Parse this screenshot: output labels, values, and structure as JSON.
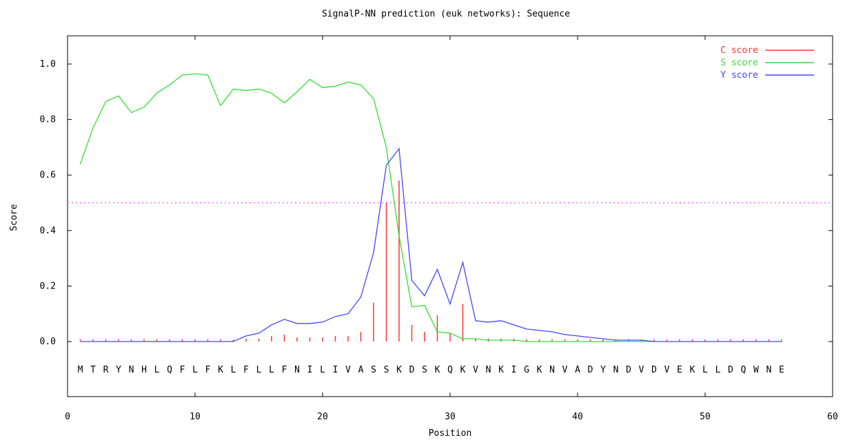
{
  "chart_data": {
    "type": "line",
    "title": "SignalP-NN prediction (euk networks): Sequence",
    "xlabel": "Position",
    "ylabel": "Score",
    "xlim": [
      0,
      60
    ],
    "ylim": [
      -0.25,
      1.1
    ],
    "x_ticks": [
      0,
      10,
      20,
      30,
      40,
      50,
      60
    ],
    "y_ticks": [
      0.0,
      0.2,
      0.4,
      0.6,
      0.8,
      1.0
    ],
    "x_tick_labels": [
      "0",
      "10",
      "20",
      "30",
      "40",
      "50",
      "60"
    ],
    "y_tick_labels": [
      "0.0",
      "0.2",
      "0.4",
      "0.6",
      "0.8",
      "1.0"
    ],
    "threshold": 0.5,
    "threshold_color": "#ff66ff",
    "legend_position": "top-right",
    "sequence": [
      "M",
      "T",
      "R",
      "Y",
      "N",
      "H",
      "L",
      "Q",
      "F",
      "L",
      "F",
      "K",
      "L",
      "F",
      "L",
      "L",
      "F",
      "N",
      "I",
      "L",
      "I",
      "V",
      "A",
      "S",
      "S",
      "K",
      "D",
      "S",
      "K",
      "Q",
      "K",
      "V",
      "N",
      "K",
      "I",
      "G",
      "K",
      "N",
      "V",
      "A",
      "D",
      "Y",
      "N",
      "D",
      "V",
      "D",
      "V",
      "E",
      "K",
      "L",
      "L",
      "D",
      "Q",
      "W",
      "N",
      "E"
    ],
    "series": [
      {
        "name": "C score",
        "style": "stem",
        "color": "#ff3333",
        "x": [
          1,
          2,
          3,
          4,
          5,
          6,
          7,
          8,
          9,
          10,
          11,
          12,
          13,
          14,
          15,
          16,
          17,
          18,
          19,
          20,
          21,
          22,
          23,
          24,
          25,
          26,
          27,
          28,
          29,
          30,
          31,
          32,
          33,
          34,
          35,
          36,
          37,
          38,
          39,
          40,
          41,
          42,
          43,
          44,
          45,
          46,
          47,
          48,
          49,
          50,
          51,
          52,
          53,
          54,
          55,
          56
        ],
        "values": [
          0.0,
          0.0,
          0.0,
          0.005,
          0.0,
          0.0,
          0.0,
          0.0,
          0.0,
          0.0,
          0.0,
          0.0,
          0.0,
          0.01,
          0.01,
          0.02,
          0.025,
          0.015,
          0.015,
          0.015,
          0.02,
          0.02,
          0.035,
          0.14,
          0.5,
          0.58,
          0.06,
          0.035,
          0.095,
          0.03,
          0.135,
          0.01,
          0.01,
          0.01,
          0.01,
          0.005,
          0.005,
          0.005,
          0.005,
          0.005,
          0.005,
          0.005,
          0.005,
          0.005,
          0.005,
          0.005,
          0.005,
          0.005,
          0.005,
          0.005,
          0.005,
          0.005,
          0.005,
          0.005,
          0.005,
          0.005
        ]
      },
      {
        "name": "S score",
        "style": "line",
        "color": "#33dd33",
        "x": [
          1,
          2,
          3,
          4,
          5,
          6,
          7,
          8,
          9,
          10,
          11,
          12,
          13,
          14,
          15,
          16,
          17,
          18,
          19,
          20,
          21,
          22,
          23,
          24,
          25,
          26,
          27,
          28,
          29,
          30,
          31,
          32,
          33,
          34,
          35,
          36,
          37,
          38,
          39,
          40,
          41,
          42,
          43,
          44,
          45,
          46
        ],
        "values": [
          0.64,
          0.77,
          0.865,
          0.885,
          0.825,
          0.845,
          0.895,
          0.925,
          0.96,
          0.965,
          0.96,
          0.85,
          0.91,
          0.905,
          0.91,
          0.895,
          0.86,
          0.9,
          0.945,
          0.915,
          0.92,
          0.935,
          0.925,
          0.875,
          0.7,
          0.38,
          0.125,
          0.13,
          0.035,
          0.03,
          0.01,
          0.01,
          0.005,
          0.005,
          0.005,
          0.0,
          0.0,
          0.0,
          0.0,
          0.0,
          0.0,
          0.0,
          0.0,
          0.0,
          0.0,
          0.0
        ]
      },
      {
        "name": "Y score",
        "style": "line",
        "color": "#4444ff",
        "x": [
          1,
          2,
          3,
          4,
          5,
          6,
          7,
          8,
          9,
          10,
          11,
          12,
          13,
          14,
          15,
          16,
          17,
          18,
          19,
          20,
          21,
          22,
          23,
          24,
          25,
          26,
          27,
          28,
          29,
          30,
          31,
          32,
          33,
          34,
          35,
          36,
          37,
          38,
          39,
          40,
          41,
          42,
          43,
          44,
          45,
          46,
          47,
          48,
          49,
          50,
          51,
          52,
          53,
          54,
          55,
          56
        ],
        "values": [
          0.0,
          0.0,
          0.0,
          0.0,
          0.0,
          0.0,
          0.0,
          0.0,
          0.0,
          0.0,
          0.0,
          0.0,
          0.0,
          0.02,
          0.03,
          0.06,
          0.08,
          0.065,
          0.065,
          0.07,
          0.09,
          0.1,
          0.16,
          0.32,
          0.635,
          0.695,
          0.22,
          0.165,
          0.26,
          0.135,
          0.285,
          0.075,
          0.07,
          0.075,
          0.06,
          0.045,
          0.04,
          0.035,
          0.025,
          0.02,
          0.015,
          0.01,
          0.005,
          0.005,
          0.005,
          0.0,
          0.0,
          0.0,
          0.0,
          0.0,
          0.0,
          0.0,
          0.0,
          0.0,
          0.0,
          0.0
        ]
      }
    ]
  }
}
